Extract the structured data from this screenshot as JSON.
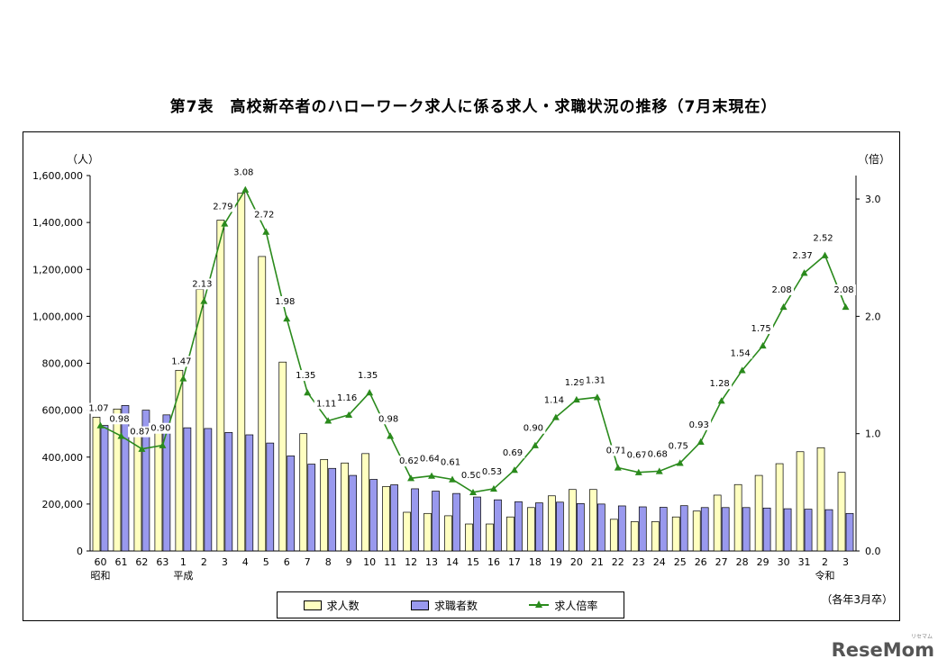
{
  "title": "第7表　高校新卒者のハローワーク求人に係る求人・求職状況の推移（7月末現在）",
  "note": "（各年3月卒）",
  "logo": "ReseMom",
  "logo_sub": "リセマム",
  "legend": {
    "offers": "求人数",
    "seekers": "求職者数",
    "ratio": "求人倍率"
  },
  "colors": {
    "offers_fill": "#ffffc0",
    "seekers_fill": "#9999ee",
    "ratio_line": "#2a8a1c"
  },
  "chart_data": {
    "type": "bar",
    "title": "第7表　高校新卒者のハローワーク求人に係る求人・求職状況の推移（7月末現在）",
    "y_left_unit": "（人）",
    "y_right_unit": "（倍）",
    "y_left_ticks": [
      "0",
      "200,000",
      "400,000",
      "600,000",
      "800,000",
      "1,000,000",
      "1,200,000",
      "1,400,000",
      "1,600,000"
    ],
    "y_right_ticks": [
      "0.0",
      "1.0",
      "2.0",
      "3.0"
    ],
    "ylim_left": [
      0,
      1600000
    ],
    "ylim_right": [
      0,
      3.2
    ],
    "categories": [
      "60",
      "61",
      "62",
      "63",
      "1",
      "2",
      "3",
      "4",
      "5",
      "6",
      "7",
      "8",
      "9",
      "10",
      "11",
      "12",
      "13",
      "14",
      "15",
      "16",
      "17",
      "18",
      "19",
      "20",
      "21",
      "22",
      "23",
      "24",
      "25",
      "26",
      "27",
      "28",
      "29",
      "30",
      "31",
      "2",
      "3"
    ],
    "era_labels": [
      {
        "index": 0,
        "label": "昭和"
      },
      {
        "index": 4,
        "label": "平成"
      },
      {
        "index": 35,
        "label": "令和"
      }
    ],
    "series": [
      {
        "name": "求人数",
        "type": "bar",
        "values": [
          570000,
          605000,
          520000,
          520000,
          770000,
          1115000,
          1410000,
          1525000,
          1255000,
          805000,
          500000,
          390000,
          375000,
          415000,
          275000,
          165000,
          160000,
          150000,
          115000,
          115000,
          145000,
          185000,
          235000,
          262000,
          262000,
          135000,
          125000,
          125000,
          145000,
          170000,
          238000,
          283000,
          322000,
          372000,
          423000,
          440000,
          335000
        ]
      },
      {
        "name": "求職者数",
        "type": "bar",
        "values": [
          535000,
          620000,
          600000,
          580000,
          525000,
          522000,
          505000,
          495000,
          460000,
          405000,
          370000,
          352000,
          322000,
          305000,
          282000,
          265000,
          255000,
          245000,
          230000,
          218000,
          210000,
          205000,
          208000,
          202000,
          200000,
          192000,
          188000,
          186000,
          193000,
          185000,
          185000,
          185000,
          183000,
          180000,
          178000,
          176000,
          160000
        ]
      },
      {
        "name": "求人倍率",
        "type": "line",
        "axis": "right",
        "values": [
          1.07,
          0.98,
          0.87,
          0.9,
          1.47,
          2.13,
          2.79,
          3.08,
          2.72,
          1.98,
          1.35,
          1.11,
          1.16,
          1.35,
          0.98,
          0.62,
          0.64,
          0.61,
          0.5,
          0.53,
          0.69,
          0.9,
          1.14,
          1.29,
          1.31,
          0.71,
          0.67,
          0.68,
          0.75,
          0.93,
          1.28,
          1.54,
          1.75,
          2.08,
          2.37,
          2.52,
          2.08
        ],
        "labels": [
          "1.07",
          "0.98",
          "0.87",
          "0.90",
          "1.47",
          "2.13",
          "2.79",
          "3.08",
          "2.72",
          "1.98",
          "1.35",
          "1.11",
          "1.16",
          "1.35",
          "0.98",
          "0.62",
          "0.64",
          "0.61",
          "0.50",
          "0.53",
          "0.69",
          "0.90",
          "1.14",
          "1.29",
          "1.31",
          "0.71",
          "0.67",
          "0.68",
          "0.75",
          "0.93",
          "1.28",
          "1.54",
          "1.75",
          "2.08",
          "2.37",
          "2.52",
          "2.08"
        ]
      }
    ]
  }
}
